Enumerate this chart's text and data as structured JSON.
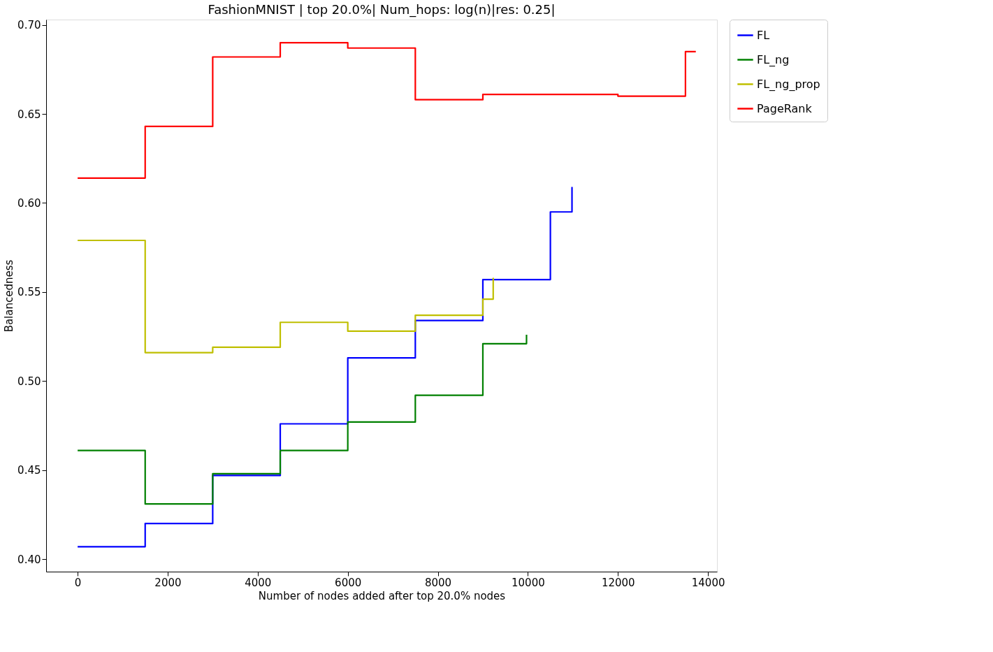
{
  "chart_data": {
    "type": "step",
    "title": "FashionMNIST | top 20.0%| Num_hops: log(n)|res: 0.25|",
    "xlabel": "Number of nodes added after top 20.0% nodes",
    "ylabel": "Balancedness",
    "xlim": [
      -700,
      14200
    ],
    "xticks": [
      0,
      2000,
      4000,
      6000,
      8000,
      10000,
      12000,
      14000
    ],
    "ylim": [
      0.393,
      0.703
    ],
    "yticks": [
      {
        "value": 0.4,
        "label": "0.40"
      },
      {
        "value": 0.45,
        "label": "0.45"
      },
      {
        "value": 0.5,
        "label": "0.50"
      },
      {
        "value": 0.55,
        "label": "0.55"
      },
      {
        "value": 0.6,
        "label": "0.60"
      },
      {
        "value": 0.65,
        "label": "0.65"
      },
      {
        "value": 0.7,
        "label": "0.70"
      }
    ],
    "grid": false,
    "legend": "right",
    "marker": "none",
    "line_style": "solid",
    "series": [
      {
        "name": "FL",
        "color": "#0000ff",
        "x": [
          0,
          1500,
          3000,
          4500,
          6000,
          7500,
          9000,
          10500,
          10980
        ],
        "values": [
          0.407,
          0.42,
          0.447,
          0.476,
          0.513,
          0.534,
          0.557,
          0.595,
          0.609
        ]
      },
      {
        "name": "FL_ng",
        "color": "#008000",
        "x": [
          0,
          1500,
          3000,
          4500,
          6000,
          7500,
          9000,
          9970
        ],
        "values": [
          0.461,
          0.431,
          0.448,
          0.461,
          0.477,
          0.492,
          0.521,
          0.526
        ]
      },
      {
        "name": "FL_ng_prop",
        "color": "#bfbf00",
        "x": [
          0,
          1500,
          3000,
          4500,
          6000,
          7500,
          9000,
          9230
        ],
        "values": [
          0.579,
          0.516,
          0.519,
          0.533,
          0.528,
          0.537,
          0.546,
          0.558
        ]
      },
      {
        "name": "PageRank",
        "color": "#ff0000",
        "x": [
          0,
          1500,
          3000,
          4500,
          6000,
          7500,
          9000,
          10500,
          12000,
          13500,
          13730
        ],
        "values": [
          0.614,
          0.643,
          0.682,
          0.69,
          0.687,
          0.658,
          0.661,
          0.661,
          0.66,
          0.685,
          0.685
        ]
      }
    ]
  }
}
